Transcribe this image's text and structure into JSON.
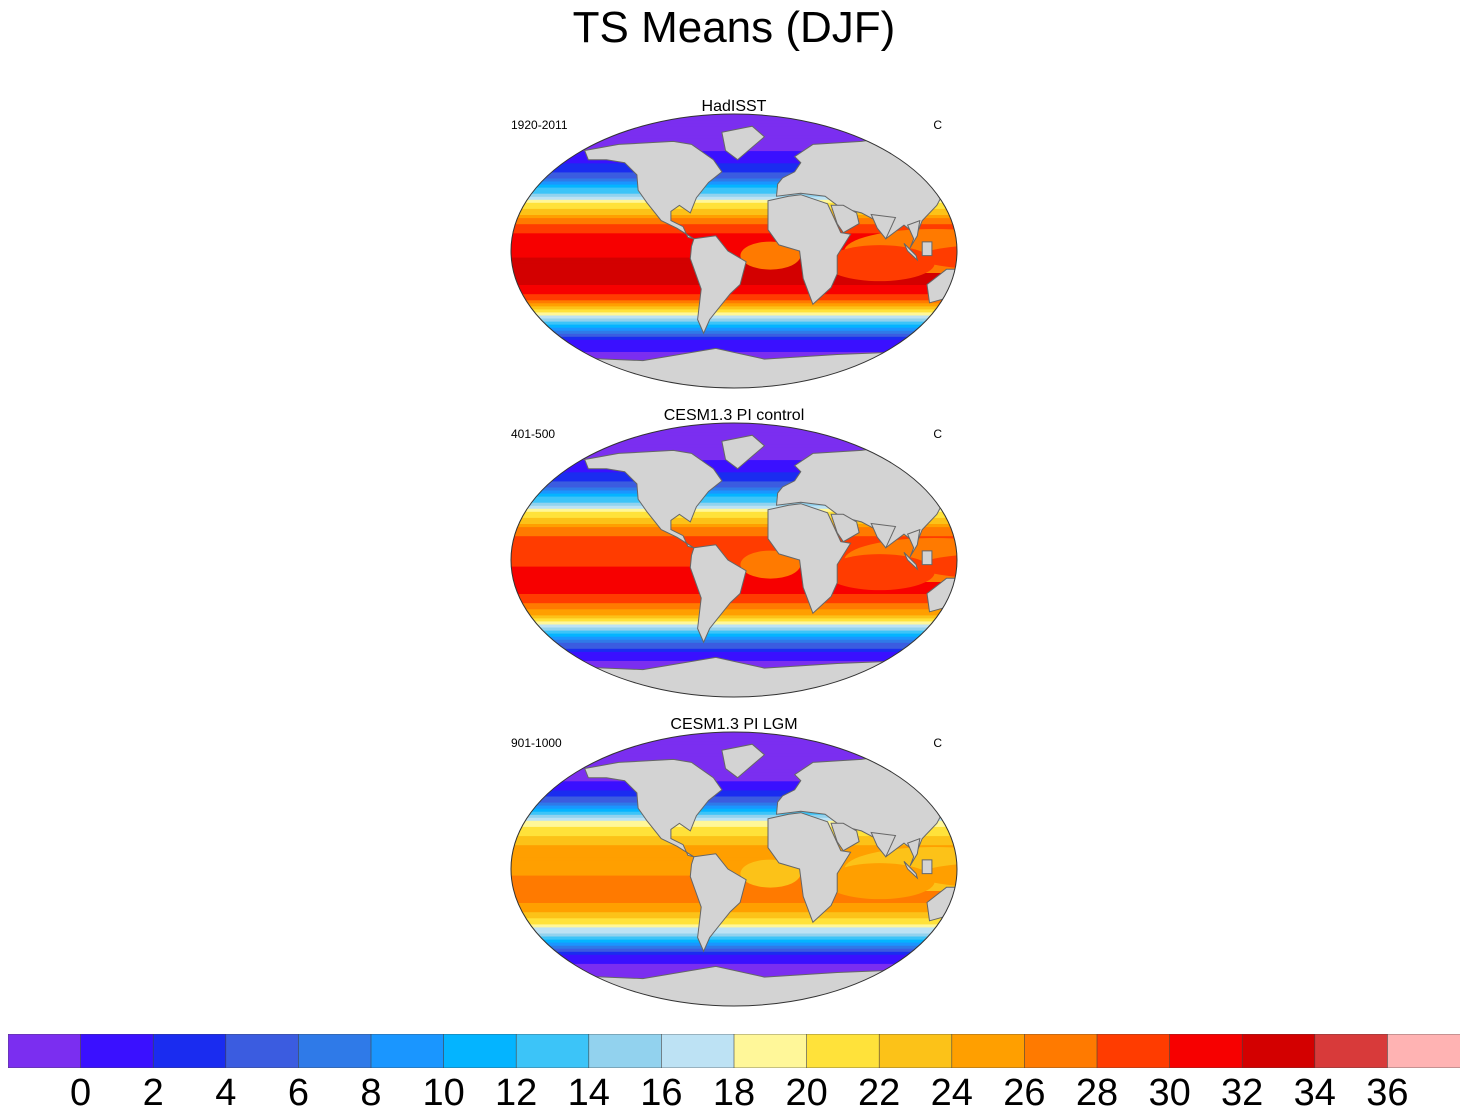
{
  "title": "TS Means (DJF)",
  "colors": {
    "land": "#d3d3d3",
    "coast": "#666666",
    "levels": [
      "#7b2ef0",
      "#3a10ff",
      "#1a2cf0",
      "#3b5ce0",
      "#2f7ae8",
      "#1a96ff",
      "#04b4ff",
      "#3cc4f8",
      "#92d2ee",
      "#bde2f4",
      "#fff799",
      "#ffe23a",
      "#fcc218",
      "#ff9f00",
      "#ff7a00",
      "#ff3c00",
      "#f70000",
      "#d30000",
      "#d83a3a",
      "#ffb3b3"
    ]
  },
  "colorbar": {
    "labels": [
      "0",
      "2",
      "4",
      "6",
      "8",
      "10",
      "12",
      "14",
      "16",
      "18",
      "20",
      "22",
      "24",
      "26",
      "28",
      "30",
      "32",
      "34",
      "36"
    ]
  },
  "panels": [
    {
      "title": "HadISST",
      "left_label": "1920-2011",
      "right_label": "C",
      "variant": "hadisst"
    },
    {
      "title": "CESM1.3 PI control",
      "left_label": "401-500",
      "right_label": "C",
      "variant": "picontrol"
    },
    {
      "title": "CESM1.3 PI LGM",
      "left_label": "901-1000",
      "right_label": "C",
      "variant": "lgm"
    }
  ]
}
